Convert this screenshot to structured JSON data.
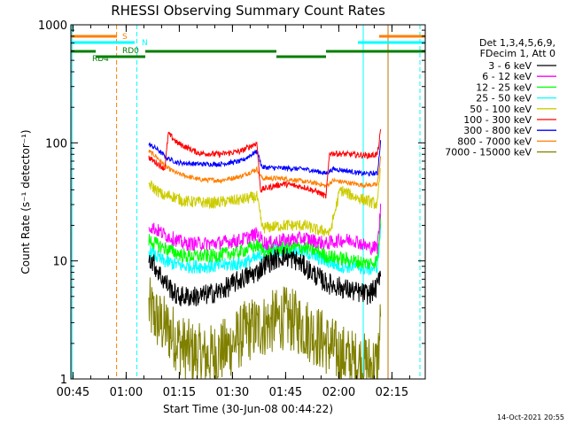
{
  "chart_data": {
    "type": "line",
    "title": "RHESSI Observing Summary Count Rates",
    "xlabel": "Start Time (30-Jun-08 00:44:22)",
    "ylabel": "Count Rate (s⁻¹ detector⁻¹)",
    "yscale": "log",
    "ylim": [
      1,
      1000
    ],
    "xlim_minutes_from_start": [
      0,
      100
    ],
    "x_tick_labels": [
      "00:45",
      "01:00",
      "01:15",
      "01:30",
      "01:45",
      "02:00",
      "02:15"
    ],
    "x_tick_minutes": [
      0.6,
      15.6,
      30.6,
      45.6,
      60.6,
      75.6,
      90.6
    ],
    "y_tick_labels": [
      "1",
      "10",
      "100",
      "1000"
    ],
    "legend_header": [
      "Det 1,3,4,5,6,9,",
      "FDecim 1, Att 0"
    ],
    "legend_position": "right",
    "footer_date": "14-Oct-2021 20:55",
    "flags": [
      {
        "label": "S",
        "color": "#ff7f00",
        "segments": [
          [
            0,
            13
          ],
          [
            87,
            100
          ]
        ]
      },
      {
        "label": "N",
        "color": "#00ffff",
        "segments": [
          [
            0,
            18
          ],
          [
            81,
            100
          ]
        ]
      },
      {
        "label": "RD0",
        "color": "#007f00",
        "segments": [
          [
            0,
            7
          ],
          [
            21,
            58
          ],
          [
            72,
            100
          ]
        ]
      },
      {
        "label": "RD4",
        "color": "#007f00",
        "segments": [
          [
            7,
            21
          ],
          [
            58,
            72
          ]
        ]
      }
    ],
    "vertical_lines": [
      {
        "x": 0.3,
        "color": "#00ffff",
        "style": "solid"
      },
      {
        "x": 12.9,
        "color": "#ff7f00",
        "style": "dashed"
      },
      {
        "x": 18.6,
        "color": "#00ffff",
        "style": "dashed"
      },
      {
        "x": 82.5,
        "color": "#00ffff",
        "style": "solid"
      },
      {
        "x": 89.5,
        "color": "#c07000",
        "style": "solid"
      },
      {
        "x": 98.5,
        "color": "#00ffff",
        "style": "dashed"
      }
    ],
    "series": [
      {
        "name": "3 - 6 keV",
        "color": "#000000",
        "noise": 0.18,
        "points": [
          [
            22,
            11
          ],
          [
            26,
            7
          ],
          [
            30,
            5
          ],
          [
            36,
            5
          ],
          [
            42,
            5.5
          ],
          [
            48,
            7
          ],
          [
            52.5,
            8
          ],
          [
            55,
            9.5
          ],
          [
            60,
            11
          ],
          [
            64,
            10
          ],
          [
            68,
            8
          ],
          [
            72,
            6.5
          ],
          [
            76,
            6
          ],
          [
            80,
            5.5
          ],
          [
            84,
            5.2
          ],
          [
            86.5,
            6
          ],
          [
            87.5,
            9
          ]
        ]
      },
      {
        "name": "6 - 12 keV",
        "color": "#ff00ff",
        "noise": 0.12,
        "points": [
          [
            22,
            20
          ],
          [
            26,
            17
          ],
          [
            32,
            14
          ],
          [
            40,
            14
          ],
          [
            48,
            15
          ],
          [
            52.5,
            17
          ],
          [
            55,
            14
          ],
          [
            60,
            15
          ],
          [
            66,
            15.5
          ],
          [
            70,
            14.5
          ],
          [
            72,
            14
          ],
          [
            76,
            15
          ],
          [
            80,
            15
          ],
          [
            84,
            13
          ],
          [
            86.5,
            13
          ],
          [
            87.5,
            30
          ]
        ]
      },
      {
        "name": "12 - 25 keV",
        "color": "#00ff00",
        "noise": 0.12,
        "points": [
          [
            22,
            15
          ],
          [
            26,
            13
          ],
          [
            32,
            11
          ],
          [
            40,
            11
          ],
          [
            48,
            12
          ],
          [
            52.5,
            13.5
          ],
          [
            55,
            12
          ],
          [
            60,
            13
          ],
          [
            66,
            13
          ],
          [
            70,
            12
          ],
          [
            72,
            11
          ],
          [
            76,
            10.5
          ],
          [
            80,
            10
          ],
          [
            84,
            9.5
          ],
          [
            86.5,
            10
          ],
          [
            87.5,
            25
          ]
        ]
      },
      {
        "name": "25 - 50 keV",
        "color": "#00ffff",
        "noise": 0.12,
        "points": [
          [
            22,
            12
          ],
          [
            26,
            10
          ],
          [
            32,
            9
          ],
          [
            40,
            9
          ],
          [
            48,
            9.5
          ],
          [
            52.5,
            10.5
          ],
          [
            55,
            12
          ],
          [
            60,
            12.5
          ],
          [
            66,
            12
          ],
          [
            70,
            10.5
          ],
          [
            72,
            10
          ],
          [
            76,
            9
          ],
          [
            80,
            9
          ],
          [
            84,
            8.5
          ],
          [
            86.5,
            9
          ],
          [
            87.5,
            20
          ]
        ]
      },
      {
        "name": "50 - 100 keV",
        "color": "#cccc00",
        "noise": 0.1,
        "points": [
          [
            22,
            45
          ],
          [
            24,
            40
          ],
          [
            26.5,
            35
          ],
          [
            28,
            36
          ],
          [
            32,
            32
          ],
          [
            40,
            31
          ],
          [
            48,
            33
          ],
          [
            52.5,
            35
          ],
          [
            54,
            19
          ],
          [
            60,
            20
          ],
          [
            66,
            20
          ],
          [
            70,
            18
          ],
          [
            72,
            18
          ],
          [
            73,
            17
          ],
          [
            76,
            40
          ],
          [
            80,
            35
          ],
          [
            84,
            32
          ],
          [
            86.5,
            30
          ],
          [
            87.5,
            65
          ]
        ]
      },
      {
        "name": "100 - 300 keV",
        "color": "#ff0000",
        "noise": 0.05,
        "points": [
          [
            22,
            75
          ],
          [
            25,
            65
          ],
          [
            26.5,
            60
          ],
          [
            27.5,
            120
          ],
          [
            30,
            100
          ],
          [
            36,
            82
          ],
          [
            42,
            80
          ],
          [
            48,
            85
          ],
          [
            52.5,
            100
          ],
          [
            53.5,
            40
          ],
          [
            56,
            42
          ],
          [
            60,
            45
          ],
          [
            66,
            42
          ],
          [
            70,
            38
          ],
          [
            72,
            35
          ],
          [
            73,
            82
          ],
          [
            78,
            80
          ],
          [
            84,
            78
          ],
          [
            86.5,
            80
          ],
          [
            87.5,
            130
          ]
        ]
      },
      {
        "name": "300 - 800 keV",
        "color": "#0000ff",
        "noise": 0.04,
        "points": [
          [
            22,
            97
          ],
          [
            24,
            90
          ],
          [
            27,
            75
          ],
          [
            30,
            68
          ],
          [
            36,
            66
          ],
          [
            42,
            66
          ],
          [
            48,
            70
          ],
          [
            52.5,
            85
          ],
          [
            54,
            62
          ],
          [
            60,
            61
          ],
          [
            66,
            60
          ],
          [
            70,
            57
          ],
          [
            72,
            55
          ],
          [
            74,
            60
          ],
          [
            78,
            58
          ],
          [
            82,
            55
          ],
          [
            86.5,
            55
          ],
          [
            87.5,
            110
          ]
        ]
      },
      {
        "name": "800 - 7000 keV",
        "color": "#ff7f00",
        "noise": 0.04,
        "points": [
          [
            22,
            85
          ],
          [
            24,
            77
          ],
          [
            27,
            62
          ],
          [
            30,
            55
          ],
          [
            36,
            49
          ],
          [
            42,
            48
          ],
          [
            48,
            52
          ],
          [
            52.5,
            60
          ],
          [
            54,
            50
          ],
          [
            60,
            50
          ],
          [
            66,
            47
          ],
          [
            70,
            45
          ],
          [
            72,
            43
          ],
          [
            74,
            48
          ],
          [
            78,
            46
          ],
          [
            82,
            44
          ],
          [
            86.5,
            44
          ],
          [
            87.5,
            80
          ]
        ]
      },
      {
        "name": "7000 - 15000 keV",
        "color": "#808000",
        "noise": 0.55,
        "points": [
          [
            22,
            4
          ],
          [
            25,
            3
          ],
          [
            28,
            2.5
          ],
          [
            32,
            1.8
          ],
          [
            38,
            1.5
          ],
          [
            44,
            1.8
          ],
          [
            50,
            2.6
          ],
          [
            54,
            2.8
          ],
          [
            60,
            3.3
          ],
          [
            64,
            3
          ],
          [
            68,
            2.5
          ],
          [
            72,
            2
          ],
          [
            76,
            1.6
          ],
          [
            80,
            1.4
          ],
          [
            84,
            1.3
          ],
          [
            86.5,
            1.3
          ],
          [
            87.5,
            3.2
          ]
        ]
      }
    ]
  }
}
